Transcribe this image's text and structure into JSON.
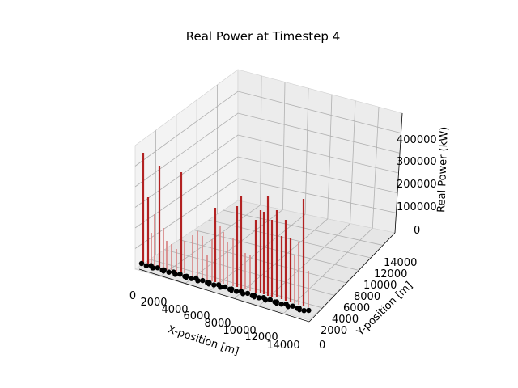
{
  "chart_data": {
    "type": "3d-bar",
    "title": "Real Power at Timestep 4",
    "xlabel": "X-position [m]",
    "ylabel": "Y-position [m]",
    "zlabel": "Real Power (kW)",
    "xlim": [
      0,
      15000
    ],
    "ylim": [
      0,
      15000
    ],
    "zlim": [
      0,
      480000
    ],
    "x_ticks": [
      "0",
      "2000",
      "4000",
      "6000",
      "8000",
      "10000",
      "12000",
      "14000"
    ],
    "y_ticks": [
      "0",
      "2000",
      "4000",
      "6000",
      "8000",
      "10000",
      "12000",
      "14000"
    ],
    "z_ticks": [
      "0",
      "100000",
      "200000",
      "300000",
      "400000"
    ],
    "grid": true,
    "colors": {
      "tall_bar": "#b22222",
      "short_bar": "#d98c8c",
      "node": "#000000"
    }
  }
}
